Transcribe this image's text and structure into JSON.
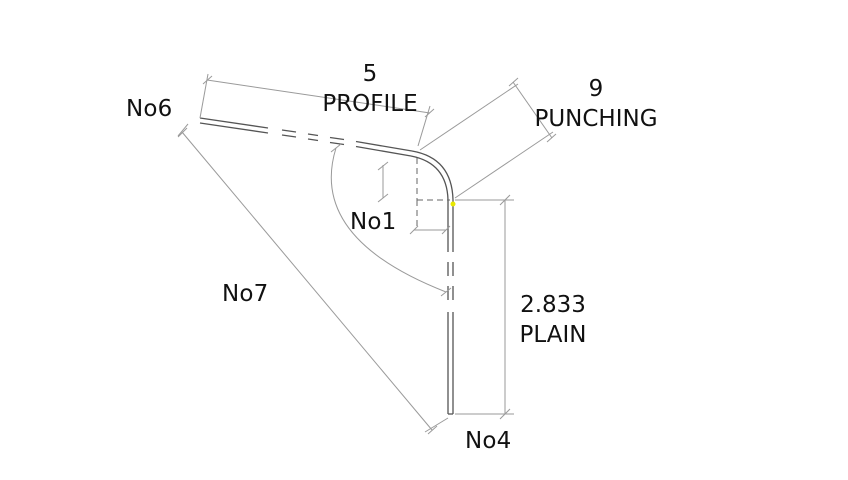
{
  "labels": {
    "no6": "No6",
    "no1": "No1",
    "no7": "No7",
    "no4": "No4"
  },
  "dimensions": {
    "profile": {
      "value": "5",
      "type": "PROFILE"
    },
    "punching": {
      "value": "9",
      "type": "PUNCHING"
    },
    "plain": {
      "value": "2.833",
      "type": "PLAIN"
    }
  },
  "colors": {
    "part_line": "#555555",
    "dimension_line": "#9a9a9a",
    "text": "#111111",
    "marker": "#e8e800"
  }
}
